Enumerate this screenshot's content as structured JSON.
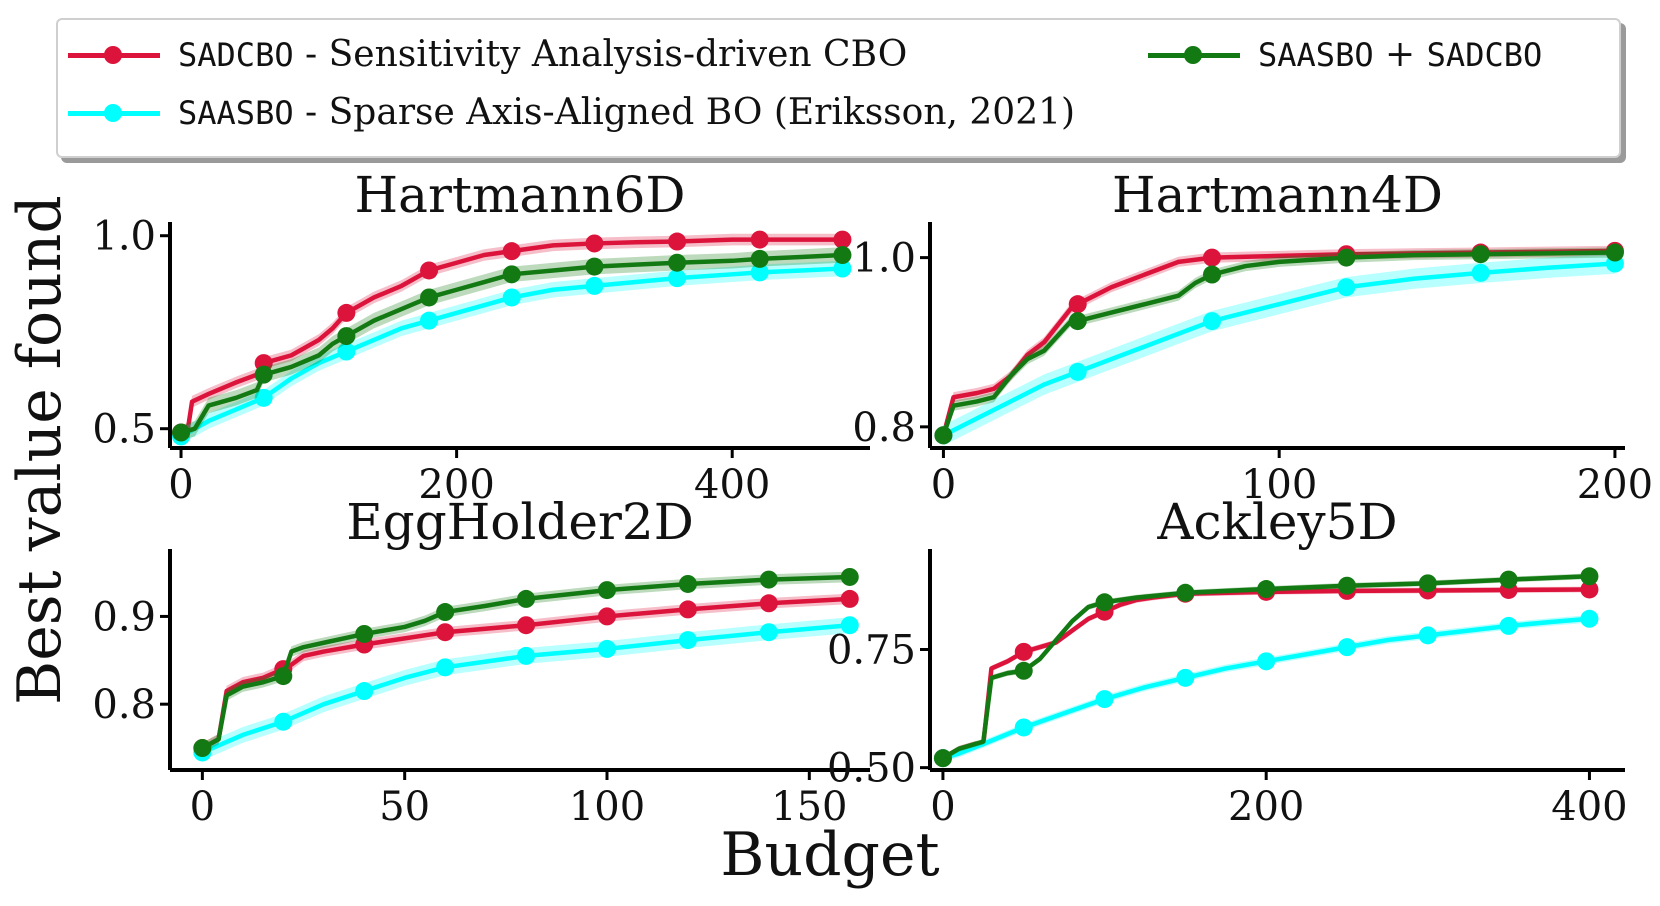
{
  "legend": {
    "items": [
      {
        "key": "SADCBO",
        "name": "SADCBO",
        "desc": " - Sensitivity Analysis-driven CBO",
        "color": "#dc143c"
      },
      {
        "key": "SAASBO",
        "name": "SAASBO",
        "desc": " - Sparse Axis-Aligned BO (Eriksson, 2021)",
        "color": "#00ffff"
      },
      {
        "key": "COMBO",
        "name": "SAASBO",
        "joiner": " + ",
        "name2": "SADCBO",
        "color": "#137a13"
      }
    ]
  },
  "global": {
    "ylabel": "Best value found",
    "xlabel": "Budget"
  },
  "chart_data": [
    {
      "type": "line",
      "title": "Hartmann6D",
      "xlim": [
        -8,
        500
      ],
      "ylim": [
        0.45,
        1.02
      ],
      "xticks": [
        0,
        200,
        400
      ],
      "xtick_labels": [
        "0",
        "200",
        "400"
      ],
      "yticks": [
        0.5,
        1.0
      ],
      "ytick_labels": [
        "0.5",
        "1.0"
      ],
      "series": [
        {
          "name": "SADCBO",
          "color": "#dc143c",
          "band": 0.015,
          "x": [
            0,
            5,
            8,
            20,
            40,
            55,
            60,
            80,
            100,
            110,
            120,
            140,
            160,
            180,
            200,
            220,
            240,
            270,
            300,
            330,
            360,
            400,
            420,
            480
          ],
          "y": [
            0.49,
            0.5,
            0.57,
            0.59,
            0.62,
            0.64,
            0.67,
            0.69,
            0.73,
            0.76,
            0.8,
            0.84,
            0.87,
            0.91,
            0.93,
            0.95,
            0.96,
            0.975,
            0.98,
            0.983,
            0.985,
            0.99,
            0.99,
            0.99
          ],
          "markers_x": [
            0,
            60,
            120,
            180,
            240,
            300,
            360,
            420,
            480
          ]
        },
        {
          "name": "SAASBO",
          "color": "#00ffff",
          "band": 0.02,
          "x": [
            0,
            5,
            10,
            20,
            40,
            60,
            80,
            100,
            120,
            140,
            160,
            180,
            200,
            240,
            270,
            300,
            330,
            360,
            400,
            420,
            450,
            480
          ],
          "y": [
            0.48,
            0.49,
            0.5,
            0.52,
            0.55,
            0.58,
            0.63,
            0.67,
            0.7,
            0.73,
            0.76,
            0.78,
            0.8,
            0.84,
            0.86,
            0.87,
            0.88,
            0.89,
            0.9,
            0.905,
            0.91,
            0.915
          ],
          "markers_x": [
            0,
            60,
            120,
            180,
            240,
            300,
            360,
            420,
            480
          ]
        },
        {
          "name": "SAASBO + SADCBO",
          "color": "#137a13",
          "band": 0.02,
          "x": [
            0,
            10,
            20,
            40,
            55,
            60,
            80,
            100,
            110,
            120,
            140,
            160,
            180,
            200,
            220,
            240,
            270,
            300,
            330,
            360,
            400,
            420,
            450,
            480
          ],
          "y": [
            0.49,
            0.5,
            0.56,
            0.58,
            0.6,
            0.64,
            0.66,
            0.69,
            0.72,
            0.74,
            0.78,
            0.81,
            0.84,
            0.86,
            0.88,
            0.9,
            0.91,
            0.92,
            0.925,
            0.93,
            0.935,
            0.94,
            0.945,
            0.95
          ],
          "markers_x": [
            0,
            60,
            120,
            180,
            240,
            300,
            360,
            420,
            480
          ]
        }
      ]
    },
    {
      "type": "line",
      "title": "Hartmann4D",
      "xlim": [
        -4,
        203
      ],
      "ylim": [
        0.775,
        1.035
      ],
      "xticks": [
        0,
        100,
        200
      ],
      "xtick_labels": [
        "0",
        "100",
        "200"
      ],
      "yticks": [
        0.8,
        1.0
      ],
      "ytick_labels": [
        "0.8",
        "1.0"
      ],
      "series": [
        {
          "name": "SADCBO",
          "color": "#dc143c",
          "band": 0.006,
          "x": [
            0,
            3,
            10,
            15,
            20,
            25,
            30,
            38,
            40,
            45,
            50,
            60,
            70,
            80,
            100,
            120,
            140,
            160,
            180,
            200
          ],
          "y": [
            0.79,
            0.835,
            0.84,
            0.845,
            0.86,
            0.885,
            0.9,
            0.94,
            0.945,
            0.955,
            0.965,
            0.98,
            0.995,
            1.0,
            1.002,
            1.004,
            1.005,
            1.006,
            1.007,
            1.008
          ],
          "markers_x": [
            0,
            40,
            80,
            120,
            160,
            200
          ]
        },
        {
          "name": "SAASBO",
          "color": "#00ffff",
          "band": 0.012,
          "x": [
            0,
            5,
            10,
            20,
            30,
            40,
            50,
            60,
            70,
            80,
            90,
            100,
            110,
            120,
            140,
            160,
            180,
            200
          ],
          "y": [
            0.79,
            0.8,
            0.81,
            0.83,
            0.85,
            0.865,
            0.88,
            0.895,
            0.91,
            0.925,
            0.935,
            0.945,
            0.955,
            0.965,
            0.975,
            0.982,
            0.988,
            0.993
          ],
          "markers_x": [
            0,
            40,
            80,
            120,
            160,
            200
          ]
        },
        {
          "name": "SAASBO + SADCBO",
          "color": "#137a13",
          "band": 0.006,
          "x": [
            0,
            3,
            10,
            15,
            20,
            25,
            30,
            38,
            40,
            50,
            60,
            70,
            75,
            80,
            90,
            100,
            120,
            140,
            160,
            180,
            200
          ],
          "y": [
            0.79,
            0.825,
            0.83,
            0.835,
            0.86,
            0.88,
            0.89,
            0.925,
            0.925,
            0.935,
            0.945,
            0.955,
            0.97,
            0.98,
            0.99,
            0.995,
            1.0,
            1.003,
            1.004,
            1.005,
            1.006
          ],
          "markers_x": [
            0,
            40,
            80,
            120,
            160,
            200
          ]
        }
      ]
    },
    {
      "type": "line",
      "title": "EggHolder2D",
      "xlim": [
        -8,
        165
      ],
      "ylim": [
        0.725,
        0.97
      ],
      "xticks": [
        0,
        50,
        100,
        150
      ],
      "xtick_labels": [
        "0",
        "50",
        "100",
        "150"
      ],
      "yticks": [
        0.8,
        0.9
      ],
      "ytick_labels": [
        "0.8",
        "0.9"
      ],
      "series": [
        {
          "name": "SADCBO",
          "color": "#dc143c",
          "band": 0.006,
          "x": [
            0,
            4,
            6,
            10,
            15,
            20,
            22,
            25,
            30,
            40,
            50,
            60,
            80,
            100,
            120,
            140,
            160
          ],
          "y": [
            0.75,
            0.76,
            0.815,
            0.825,
            0.83,
            0.84,
            0.845,
            0.855,
            0.86,
            0.868,
            0.875,
            0.882,
            0.89,
            0.9,
            0.908,
            0.915,
            0.92
          ],
          "markers_x": [
            0,
            20,
            40,
            60,
            80,
            100,
            120,
            140,
            160
          ]
        },
        {
          "name": "SAASBO",
          "color": "#00ffff",
          "band": 0.009,
          "x": [
            0,
            5,
            10,
            20,
            30,
            40,
            50,
            60,
            80,
            100,
            120,
            140,
            160
          ],
          "y": [
            0.745,
            0.755,
            0.765,
            0.78,
            0.8,
            0.815,
            0.83,
            0.842,
            0.855,
            0.863,
            0.873,
            0.882,
            0.89
          ],
          "markers_x": [
            0,
            20,
            40,
            60,
            80,
            100,
            120,
            140,
            160
          ]
        },
        {
          "name": "SAASBO + SADCBO",
          "color": "#137a13",
          "band": 0.006,
          "x": [
            0,
            4,
            6,
            10,
            15,
            20,
            22,
            25,
            30,
            40,
            50,
            55,
            60,
            70,
            80,
            100,
            120,
            140,
            160
          ],
          "y": [
            0.75,
            0.76,
            0.81,
            0.82,
            0.825,
            0.832,
            0.86,
            0.865,
            0.87,
            0.88,
            0.888,
            0.895,
            0.905,
            0.912,
            0.92,
            0.93,
            0.937,
            0.942,
            0.945
          ],
          "markers_x": [
            0,
            20,
            40,
            60,
            80,
            100,
            120,
            140,
            160
          ]
        }
      ]
    },
    {
      "type": "line",
      "title": "Ackley5D",
      "xlim": [
        -8,
        422
      ],
      "ylim": [
        0.495,
        0.95
      ],
      "xticks": [
        0,
        200,
        400
      ],
      "xtick_labels": [
        "0",
        "200",
        "400"
      ],
      "yticks": [
        0.5,
        0.75
      ],
      "ytick_labels": [
        "0.50",
        "0.75"
      ],
      "series": [
        {
          "name": "SADCBO",
          "color": "#dc143c",
          "band": 0.006,
          "x": [
            0,
            10,
            20,
            25,
            30,
            40,
            50,
            60,
            70,
            80,
            90,
            100,
            110,
            120,
            130,
            150,
            200,
            250,
            300,
            350,
            400
          ],
          "y": [
            0.52,
            0.54,
            0.55,
            0.55,
            0.71,
            0.725,
            0.745,
            0.755,
            0.765,
            0.79,
            0.815,
            0.83,
            0.845,
            0.855,
            0.86,
            0.868,
            0.872,
            0.874,
            0.875,
            0.876,
            0.877
          ],
          "markers_x": [
            0,
            50,
            100,
            150,
            200,
            250,
            300,
            350,
            400
          ]
        },
        {
          "name": "SAASBO",
          "color": "#00ffff",
          "band": 0.008,
          "x": [
            0,
            10,
            25,
            50,
            75,
            100,
            125,
            150,
            175,
            200,
            225,
            250,
            275,
            300,
            325,
            350,
            375,
            400
          ],
          "y": [
            0.52,
            0.53,
            0.55,
            0.585,
            0.615,
            0.645,
            0.67,
            0.69,
            0.71,
            0.725,
            0.74,
            0.755,
            0.77,
            0.78,
            0.79,
            0.8,
            0.808,
            0.815
          ],
          "markers_x": [
            0,
            50,
            100,
            150,
            200,
            250,
            300,
            350,
            400
          ]
        },
        {
          "name": "SAASBO + SADCBO",
          "color": "#137a13",
          "band": 0.006,
          "x": [
            0,
            10,
            20,
            25,
            30,
            40,
            50,
            60,
            70,
            80,
            90,
            100,
            110,
            120,
            150,
            200,
            250,
            300,
            350,
            400
          ],
          "y": [
            0.52,
            0.54,
            0.55,
            0.555,
            0.69,
            0.7,
            0.705,
            0.73,
            0.77,
            0.81,
            0.84,
            0.85,
            0.855,
            0.86,
            0.87,
            0.878,
            0.885,
            0.89,
            0.898,
            0.905
          ],
          "markers_x": [
            0,
            50,
            100,
            150,
            200,
            250,
            300,
            350,
            400
          ]
        }
      ]
    }
  ]
}
